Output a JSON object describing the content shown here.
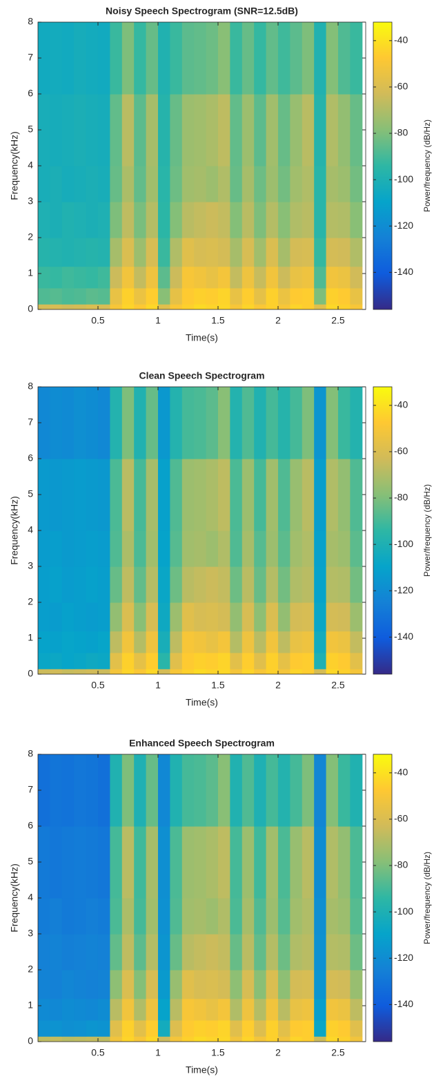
{
  "chart_data": [
    {
      "type": "heatmap",
      "title": "Noisy Speech Spectrogram (SNR=12.5dB)",
      "xlabel": "Time(s)",
      "ylabel": "Frequency(kHz)",
      "colorbar_label": "Power/frequency (dB/Hz)",
      "xbins": [
        0,
        0.1,
        0.2,
        0.3,
        0.4,
        0.5,
        0.6,
        0.7,
        0.8,
        0.9,
        1,
        1.1,
        1.2,
        1.3,
        1.4,
        1.5,
        1.6,
        1.7,
        1.8,
        1.9,
        2,
        2.1,
        2.2,
        2.3,
        2.4,
        2.5,
        2.6,
        2.7
      ],
      "ybins": [
        0,
        0.15,
        0.6,
        1.2,
        2,
        3,
        4,
        6,
        8
      ],
      "z": [
        [
          -62,
          -61,
          -63,
          -62,
          -60,
          -61,
          -50,
          -44,
          -48,
          -43,
          -58,
          -49,
          -45,
          -42,
          -44,
          -43,
          -50,
          -44,
          -49,
          -45,
          -50,
          -44,
          -46,
          -58,
          -43,
          -45,
          -50
        ],
        [
          -88,
          -87,
          -89,
          -88,
          -86,
          -87,
          -55,
          -45,
          -54,
          -46,
          -78,
          -56,
          -47,
          -45,
          -46,
          -44,
          -55,
          -46,
          -56,
          -45,
          -54,
          -47,
          -46,
          -80,
          -45,
          -47,
          -55
        ],
        [
          -92,
          -93,
          -91,
          -92,
          -93,
          -91,
          -64,
          -52,
          -66,
          -53,
          -86,
          -64,
          -50,
          -52,
          -55,
          -51,
          -66,
          -53,
          -65,
          -52,
          -64,
          -55,
          -53,
          -88,
          -52,
          -54,
          -63
        ],
        [
          -97,
          -98,
          -99,
          -98,
          -97,
          -98,
          -72,
          -60,
          -74,
          -61,
          -92,
          -70,
          -58,
          -61,
          -60,
          -62,
          -72,
          -61,
          -73,
          -60,
          -72,
          -62,
          -61,
          -93,
          -62,
          -63,
          -70
        ],
        [
          -100,
          -101,
          -99,
          -100,
          -101,
          -100,
          -80,
          -67,
          -81,
          -69,
          -95,
          -79,
          -68,
          -66,
          -64,
          -66,
          -79,
          -68,
          -80,
          -69,
          -78,
          -70,
          -68,
          -96,
          -69,
          -70,
          -78
        ],
        [
          -102,
          -101,
          -103,
          -102,
          -101,
          -102,
          -84,
          -71,
          -85,
          -73,
          -96,
          -83,
          -73,
          -72,
          -74,
          -70,
          -84,
          -72,
          -83,
          -74,
          -82,
          -73,
          -70,
          -96,
          -72,
          -74,
          -82
        ],
        [
          -102,
          -103,
          -102,
          -101,
          -102,
          -103,
          -85,
          -68,
          -86,
          -72,
          -97,
          -84,
          -74,
          -73,
          -71,
          -67,
          -85,
          -74,
          -86,
          -73,
          -84,
          -75,
          -68,
          -97,
          -70,
          -76,
          -84
        ],
        [
          -105,
          -104,
          -105,
          -103,
          -104,
          -105,
          -92,
          -80,
          -93,
          -84,
          -99,
          -92,
          -86,
          -85,
          -83,
          -78,
          -92,
          -84,
          -93,
          -85,
          -91,
          -86,
          -80,
          -99,
          -79,
          -88,
          -92
        ]
      ],
      "xlim": [
        0,
        2.73
      ],
      "ylim": [
        0,
        8
      ],
      "xticks": [
        0.5,
        1,
        1.5,
        2,
        2.5
      ],
      "yticks": [
        0,
        1,
        2,
        3,
        4,
        5,
        6,
        7,
        8
      ],
      "clim": [
        -156,
        -32
      ],
      "cticks": [
        -40,
        -60,
        -80,
        -100,
        -120,
        -140
      ],
      "colormap": [
        "#352a87",
        "#0f5cdd",
        "#1481d6",
        "#06a4ca",
        "#2eb7a4",
        "#87bf77",
        "#d1bb59",
        "#fec832",
        "#f9fb0e"
      ]
    },
    {
      "type": "heatmap",
      "title": "Clean Speech Spectrogram",
      "xlabel": "Time(s)",
      "ylabel": "Frequency(kHz)",
      "colorbar_label": "Power/frequency (dB/Hz)",
      "xbins": [
        0,
        0.1,
        0.2,
        0.3,
        0.4,
        0.5,
        0.6,
        0.7,
        0.8,
        0.9,
        1,
        1.1,
        1.2,
        1.3,
        1.4,
        1.5,
        1.6,
        1.7,
        1.8,
        1.9,
        2,
        2.1,
        2.2,
        2.3,
        2.4,
        2.5,
        2.6,
        2.7
      ],
      "ybins": [
        0,
        0.15,
        0.6,
        1.2,
        2,
        3,
        4,
        6,
        8
      ],
      "z": [
        [
          -64,
          -63,
          -65,
          -64,
          -63,
          -64,
          -51,
          -44,
          -49,
          -43,
          -62,
          -50,
          -45,
          -42,
          -44,
          -43,
          -51,
          -44,
          -50,
          -45,
          -51,
          -44,
          -46,
          -62,
          -43,
          -45,
          -51
        ],
        [
          -108,
          -107,
          -109,
          -108,
          -106,
          -107,
          -57,
          -45,
          -56,
          -46,
          -96,
          -58,
          -47,
          -45,
          -46,
          -44,
          -57,
          -46,
          -58,
          -45,
          -56,
          -47,
          -46,
          -100,
          -45,
          -47,
          -57
        ],
        [
          -110,
          -111,
          -109,
          -110,
          -111,
          -109,
          -67,
          -52,
          -69,
          -53,
          -102,
          -67,
          -50,
          -52,
          -55,
          -51,
          -69,
          -53,
          -68,
          -52,
          -67,
          -55,
          -53,
          -104,
          -52,
          -54,
          -66
        ],
        [
          -112,
          -113,
          -111,
          -112,
          -113,
          -112,
          -76,
          -60,
          -78,
          -61,
          -106,
          -74,
          -58,
          -61,
          -60,
          -62,
          -76,
          -61,
          -77,
          -60,
          -76,
          -62,
          -61,
          -108,
          -62,
          -63,
          -74
        ],
        [
          -112,
          -111,
          -113,
          -112,
          -111,
          -112,
          -84,
          -67,
          -85,
          -69,
          -108,
          -83,
          -68,
          -66,
          -64,
          -66,
          -83,
          -68,
          -84,
          -69,
          -82,
          -70,
          -68,
          -110,
          -69,
          -70,
          -82
        ],
        [
          -113,
          -112,
          -114,
          -113,
          -112,
          -113,
          -88,
          -71,
          -89,
          -73,
          -110,
          -87,
          -73,
          -72,
          -74,
          -70,
          -88,
          -72,
          -87,
          -74,
          -86,
          -73,
          -70,
          -111,
          -72,
          -74,
          -86
        ],
        [
          -114,
          -115,
          -114,
          -113,
          -114,
          -115,
          -89,
          -68,
          -90,
          -72,
          -111,
          -88,
          -74,
          -73,
          -71,
          -67,
          -89,
          -74,
          -90,
          -73,
          -88,
          -75,
          -68,
          -112,
          -70,
          -76,
          -88
        ],
        [
          -122,
          -120,
          -121,
          -119,
          -120,
          -122,
          -98,
          -80,
          -99,
          -84,
          -115,
          -98,
          -90,
          -89,
          -86,
          -78,
          -98,
          -88,
          -99,
          -90,
          -97,
          -90,
          -80,
          -116,
          -79,
          -92,
          -98
        ]
      ],
      "xlim": [
        0,
        2.73
      ],
      "ylim": [
        0,
        8
      ],
      "xticks": [
        0.5,
        1,
        1.5,
        2,
        2.5
      ],
      "yticks": [
        0,
        1,
        2,
        3,
        4,
        5,
        6,
        7,
        8
      ],
      "clim": [
        -156,
        -32
      ],
      "cticks": [
        -40,
        -60,
        -80,
        -100,
        -120,
        -140
      ],
      "colormap": [
        "#352a87",
        "#0f5cdd",
        "#1481d6",
        "#06a4ca",
        "#2eb7a4",
        "#87bf77",
        "#d1bb59",
        "#fec832",
        "#f9fb0e"
      ]
    },
    {
      "type": "heatmap",
      "title": "Enhanced Speech Spectrogram",
      "xlabel": "Time(s)",
      "ylabel": "Frequency(kHz)",
      "colorbar_label": "Power/frequency (dB/Hz)",
      "xbins": [
        0,
        0.1,
        0.2,
        0.3,
        0.4,
        0.5,
        0.6,
        0.7,
        0.8,
        0.9,
        1,
        1.1,
        1.2,
        1.3,
        1.4,
        1.5,
        1.6,
        1.7,
        1.8,
        1.9,
        2,
        2.1,
        2.2,
        2.3,
        2.4,
        2.5,
        2.6,
        2.7
      ],
      "ybins": [
        0,
        0.15,
        0.6,
        1.2,
        2,
        3,
        4,
        6,
        8
      ],
      "z": [
        [
          -67,
          -66,
          -68,
          -67,
          -66,
          -67,
          -52,
          -44,
          -50,
          -43,
          -64,
          -51,
          -45,
          -42,
          -44,
          -43,
          -52,
          -44,
          -51,
          -45,
          -52,
          -44,
          -46,
          -64,
          -43,
          -45,
          -52
        ],
        [
          -118,
          -117,
          -119,
          -118,
          -116,
          -117,
          -58,
          -45,
          -57,
          -46,
          -104,
          -59,
          -47,
          -45,
          -46,
          -44,
          -58,
          -46,
          -59,
          -45,
          -57,
          -47,
          -46,
          -108,
          -45,
          -47,
          -58
        ],
        [
          -121,
          -122,
          -120,
          -121,
          -122,
          -120,
          -68,
          -52,
          -70,
          -53,
          -110,
          -68,
          -50,
          -52,
          -55,
          -51,
          -70,
          -53,
          -69,
          -52,
          -68,
          -55,
          -53,
          -112,
          -52,
          -54,
          -67
        ],
        [
          -124,
          -125,
          -123,
          -124,
          -125,
          -124,
          -77,
          -60,
          -79,
          -61,
          -114,
          -75,
          -58,
          -61,
          -60,
          -62,
          -77,
          -61,
          -78,
          -60,
          -77,
          -62,
          -61,
          -116,
          -62,
          -63,
          -75
        ],
        [
          -125,
          -124,
          -126,
          -125,
          -124,
          -125,
          -85,
          -67,
          -86,
          -69,
          -116,
          -84,
          -68,
          -66,
          -64,
          -66,
          -84,
          -68,
          -85,
          -69,
          -83,
          -70,
          -68,
          -118,
          -69,
          -70,
          -83
        ],
        [
          -127,
          -126,
          -128,
          -127,
          -126,
          -127,
          -89,
          -71,
          -90,
          -73,
          -118,
          -88,
          -73,
          -72,
          -74,
          -70,
          -89,
          -72,
          -88,
          -74,
          -87,
          -73,
          -70,
          -119,
          -72,
          -74,
          -87
        ],
        [
          -128,
          -129,
          -128,
          -127,
          -128,
          -129,
          -90,
          -68,
          -91,
          -72,
          -119,
          -89,
          -74,
          -73,
          -71,
          -67,
          -90,
          -74,
          -91,
          -73,
          -89,
          -75,
          -68,
          -120,
          -70,
          -76,
          -89
        ],
        [
          -132,
          -130,
          -131,
          -129,
          -130,
          -132,
          -99,
          -80,
          -100,
          -84,
          -122,
          -99,
          -90,
          -89,
          -86,
          -78,
          -99,
          -88,
          -100,
          -90,
          -98,
          -90,
          -80,
          -123,
          -79,
          -92,
          -99
        ]
      ],
      "xlim": [
        0,
        2.73
      ],
      "ylim": [
        0,
        8
      ],
      "xticks": [
        0.5,
        1,
        1.5,
        2,
        2.5
      ],
      "yticks": [
        0,
        1,
        2,
        3,
        4,
        5,
        6,
        7,
        8
      ],
      "clim": [
        -156,
        -32
      ],
      "cticks": [
        -40,
        -60,
        -80,
        -100,
        -120,
        -140
      ],
      "colormap": [
        "#352a87",
        "#0f5cdd",
        "#1481d6",
        "#06a4ca",
        "#2eb7a4",
        "#87bf77",
        "#d1bb59",
        "#fec832",
        "#f9fb0e"
      ]
    }
  ]
}
